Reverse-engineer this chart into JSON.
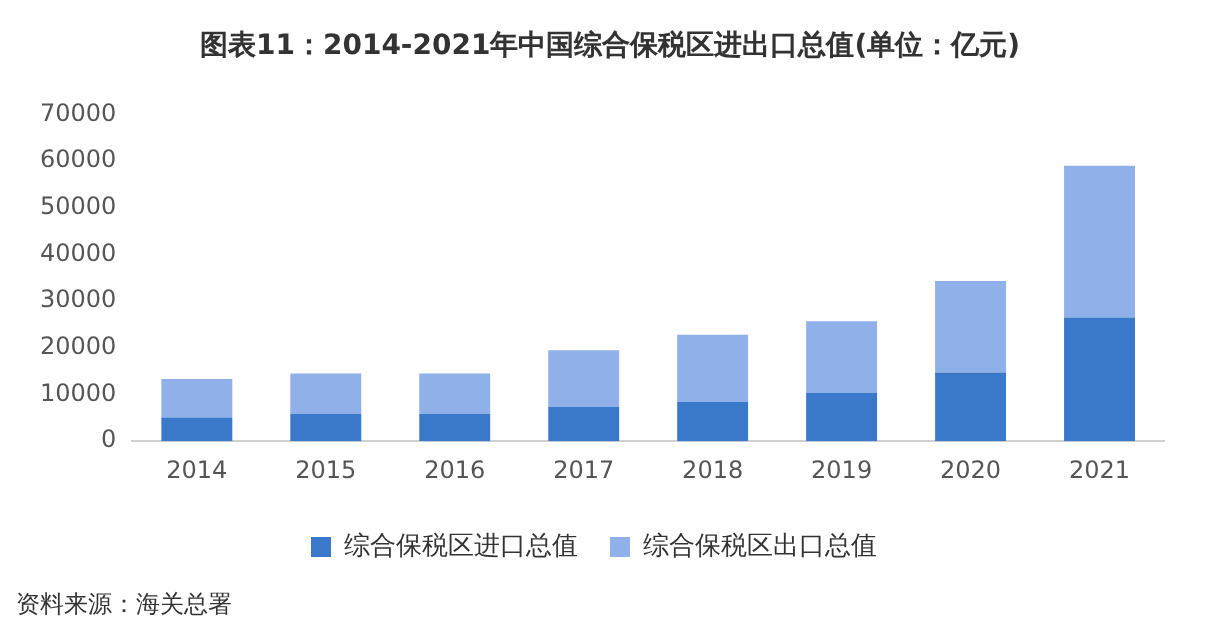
{
  "chart_data": {
    "type": "bar",
    "title": "图表11：2014-2021年中国综合保税区进出口总值(单位：亿元)",
    "categories": [
      "2014",
      "2015",
      "2016",
      "2017",
      "2018",
      "2019",
      "2020",
      "2021"
    ],
    "series": [
      {
        "name": "综合保税区进口总值",
        "color": "#3a78c9",
        "values": [
          5100,
          5900,
          5900,
          7300,
          8400,
          10400,
          14700,
          26500
        ]
      },
      {
        "name": "综合保税区出口总值",
        "color": "#8fb0e8",
        "values": [
          8200,
          8600,
          8600,
          12200,
          14400,
          15300,
          19600,
          32500
        ]
      }
    ],
    "stacked": true,
    "ylim": [
      0,
      70000
    ],
    "yticks": [
      0,
      10000,
      20000,
      30000,
      40000,
      50000,
      60000,
      70000
    ],
    "grid": false,
    "legend": "bottom",
    "annotations": [
      "资料来源：海关总署"
    ]
  }
}
